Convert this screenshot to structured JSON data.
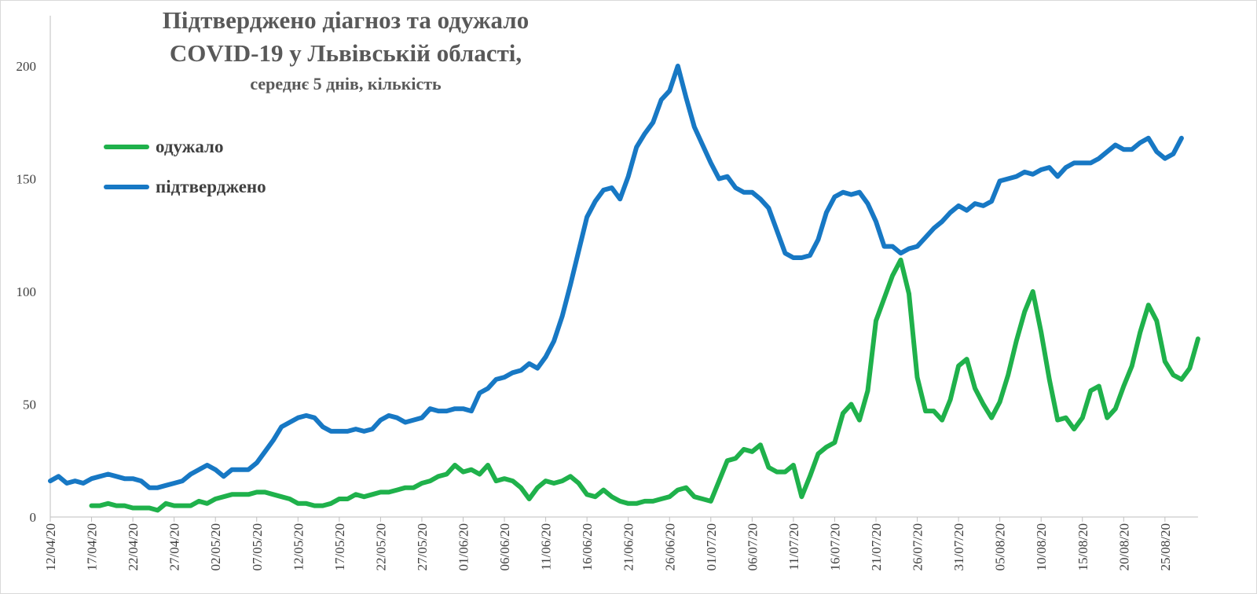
{
  "chart_data": {
    "type": "line",
    "title": "Підтверджено діагноз та одужало",
    "title_line2": "COVID-19 у Львівській області,",
    "subtitle": "середнє 5 днів, кількість",
    "xlabel": "",
    "ylabel": "",
    "ylim": [
      0,
      200
    ],
    "yticks": [
      "0",
      "50",
      "100",
      "150",
      "200"
    ],
    "x_start": "12/04/20",
    "x_ticks": [
      "12/04/20",
      "17/04/20",
      "22/04/20",
      "27/04/20",
      "02/05/20",
      "07/05/20",
      "12/05/20",
      "17/05/20",
      "22/05/20",
      "27/05/20",
      "01/06/20",
      "06/06/20",
      "11/06/20",
      "16/06/20",
      "21/06/20",
      "26/06/20",
      "01/07/20",
      "06/07/20",
      "11/07/20",
      "16/07/20",
      "21/07/20",
      "26/07/20",
      "31/07/20",
      "05/08/20",
      "10/08/20",
      "15/08/20",
      "20/08/20",
      "25/08/20"
    ],
    "grid": false,
    "legend_position": "top-left",
    "series": [
      {
        "name": "одужало",
        "color": "#1fb14b",
        "start_day": 5,
        "values": [
          5,
          5,
          6,
          5,
          5,
          4,
          4,
          4,
          3,
          6,
          5,
          5,
          5,
          7,
          6,
          8,
          9,
          10,
          10,
          10,
          11,
          11,
          10,
          9,
          8,
          6,
          6,
          5,
          5,
          6,
          8,
          8,
          10,
          9,
          10,
          11,
          11,
          12,
          13,
          13,
          15,
          16,
          18,
          19,
          23,
          20,
          21,
          19,
          23,
          16,
          17,
          16,
          13,
          8,
          13,
          16,
          15,
          16,
          18,
          15,
          10,
          9,
          12,
          9,
          7,
          6,
          6,
          7,
          7,
          8,
          9,
          12,
          13,
          9,
          8,
          7,
          16,
          25,
          26,
          30,
          29,
          32,
          22,
          20,
          20,
          23,
          9,
          18,
          28,
          31,
          33,
          46,
          50,
          43,
          56,
          87,
          97,
          107,
          114,
          99,
          62,
          47,
          47,
          43,
          52,
          67,
          70,
          57,
          50,
          44,
          51,
          63,
          78,
          91,
          100,
          82,
          61,
          43,
          44,
          39,
          44,
          56,
          58,
          44,
          48,
          58,
          67,
          82,
          94,
          87,
          69,
          63,
          61,
          66,
          79
        ]
      },
      {
        "name": "підтверджено",
        "color": "#1778c4",
        "start_day": 0,
        "values": [
          16,
          18,
          15,
          16,
          15,
          17,
          18,
          19,
          18,
          17,
          17,
          16,
          13,
          13,
          14,
          15,
          16,
          19,
          21,
          23,
          21,
          18,
          21,
          21,
          21,
          24,
          29,
          34,
          40,
          42,
          44,
          45,
          44,
          40,
          38,
          38,
          38,
          39,
          38,
          39,
          43,
          45,
          44,
          42,
          43,
          44,
          48,
          47,
          47,
          48,
          48,
          47,
          55,
          57,
          61,
          62,
          64,
          65,
          68,
          66,
          71,
          78,
          89,
          103,
          118,
          133,
          140,
          145,
          146,
          141,
          151,
          164,
          170,
          175,
          185,
          189,
          200,
          186,
          173,
          165,
          157,
          150,
          151,
          146,
          144,
          144,
          141,
          137,
          127,
          117,
          115,
          115,
          116,
          123,
          135,
          142,
          144,
          143,
          144,
          139,
          131,
          120,
          120,
          117,
          119,
          120,
          124,
          128,
          131,
          135,
          138,
          136,
          139,
          138,
          140,
          149,
          150,
          151,
          153,
          152,
          154,
          155,
          151,
          155,
          157,
          157,
          157,
          159,
          162,
          165,
          163,
          163,
          166,
          168,
          162,
          159,
          161,
          168
        ]
      }
    ]
  }
}
